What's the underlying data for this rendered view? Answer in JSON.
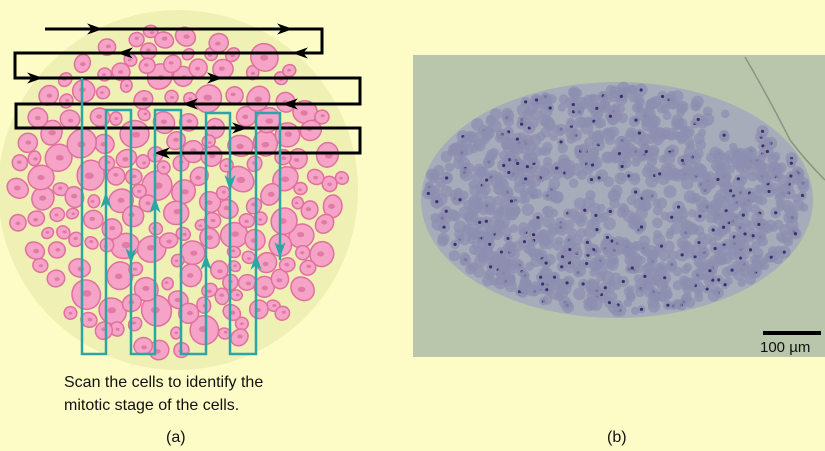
{
  "panel_a": {
    "caption_line1": "Scan the cells to identify the",
    "caption_line2": "mitotic stage of the cells.",
    "label": "(a)",
    "colors": {
      "background": "#fdfcc7",
      "field": "#eef0b4",
      "cell": "#f5a3c6",
      "cell_outline": "#e0709e",
      "scan_horizontal": "#000000",
      "scan_vertical": "#2aa6a6"
    }
  },
  "panel_b": {
    "scale_bar_label": "100 µm",
    "label": "(b)",
    "colors": {
      "slide": "#b9c6ab",
      "tissue": "#8e8fb0",
      "nucleus": "#3e2f6e"
    }
  }
}
